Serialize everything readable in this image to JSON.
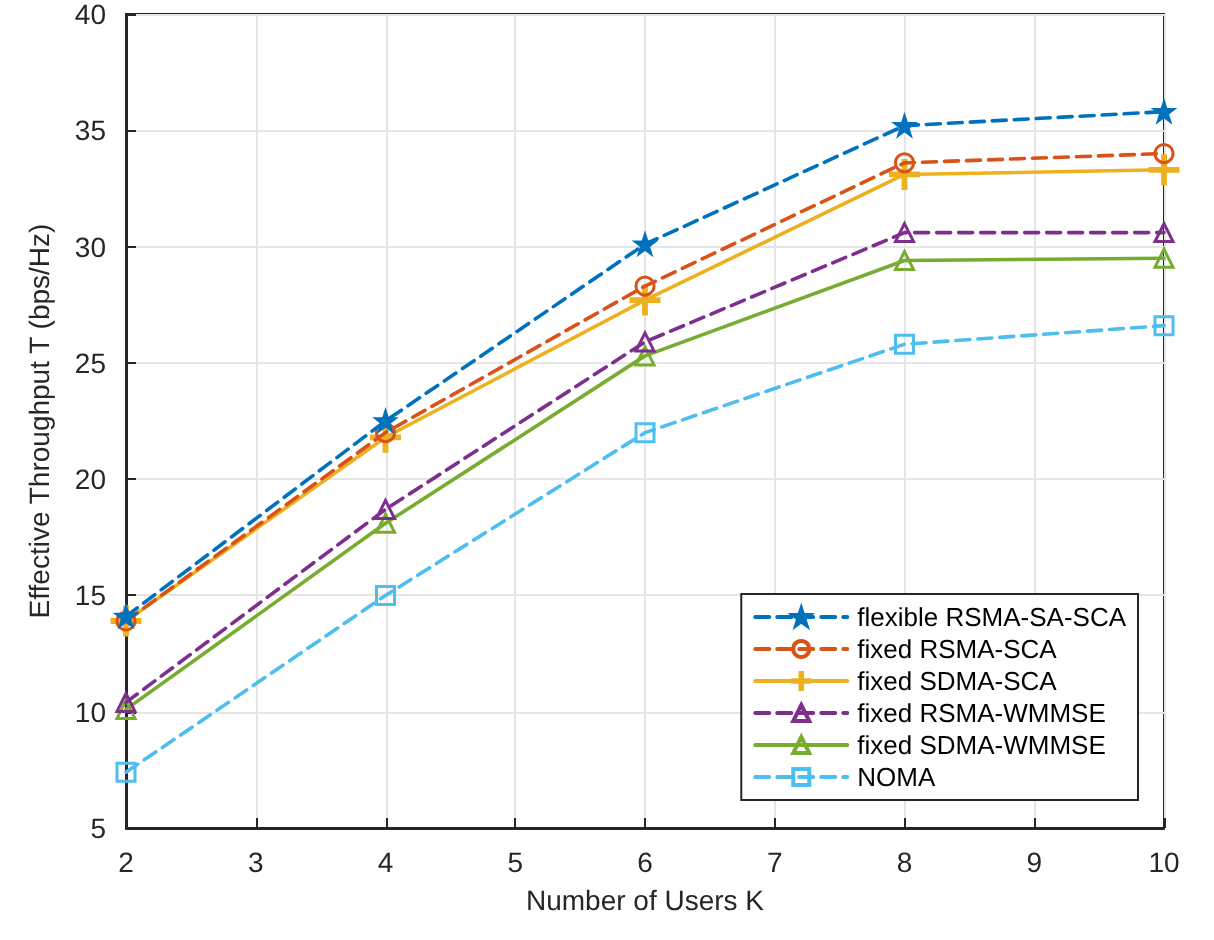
{
  "chart_data": {
    "type": "line",
    "xlabel": "Number of Users K",
    "ylabel": "Effective Throughput T (bps/Hz)",
    "x": [
      2,
      4,
      6,
      8,
      10
    ],
    "xlim": [
      2,
      10
    ],
    "xticks": [
      2,
      3,
      4,
      5,
      6,
      7,
      8,
      9,
      10
    ],
    "ylim": [
      5,
      40
    ],
    "yticks": [
      5,
      10,
      15,
      20,
      25,
      30,
      35,
      40
    ],
    "grid": true,
    "legend": "bottom right",
    "series": [
      {
        "name": "flexible RSMA-SA-SCA",
        "color": "#0072bd",
        "marker": "star",
        "line_style": "dashed",
        "values": [
          14.1,
          22.5,
          30.1,
          35.2,
          35.8
        ]
      },
      {
        "name": "fixed RSMA-SCA",
        "color": "#d95319",
        "marker": "circle",
        "line_style": "dashed",
        "values": [
          13.9,
          22.0,
          28.3,
          33.6,
          34.0
        ]
      },
      {
        "name": "fixed SDMA-SCA",
        "color": "#edb120",
        "marker": "cross",
        "line_style": "solid",
        "values": [
          13.9,
          21.8,
          27.7,
          33.1,
          33.3
        ]
      },
      {
        "name": "fixed RSMA-WMMSE",
        "color": "#7e2f8e",
        "marker": "triangle",
        "line_style": "dashed",
        "values": [
          10.4,
          18.7,
          25.9,
          30.6,
          30.6
        ]
      },
      {
        "name": "fixed SDMA-WMMSE",
        "color": "#77ac30",
        "marker": "triangle",
        "line_style": "solid",
        "values": [
          10.1,
          18.1,
          25.3,
          29.4,
          29.5
        ]
      },
      {
        "name": "NOMA",
        "color": "#4dbeee",
        "marker": "square",
        "line_style": "dashed",
        "values": [
          7.4,
          15.0,
          22.0,
          25.8,
          26.6
        ]
      }
    ]
  }
}
